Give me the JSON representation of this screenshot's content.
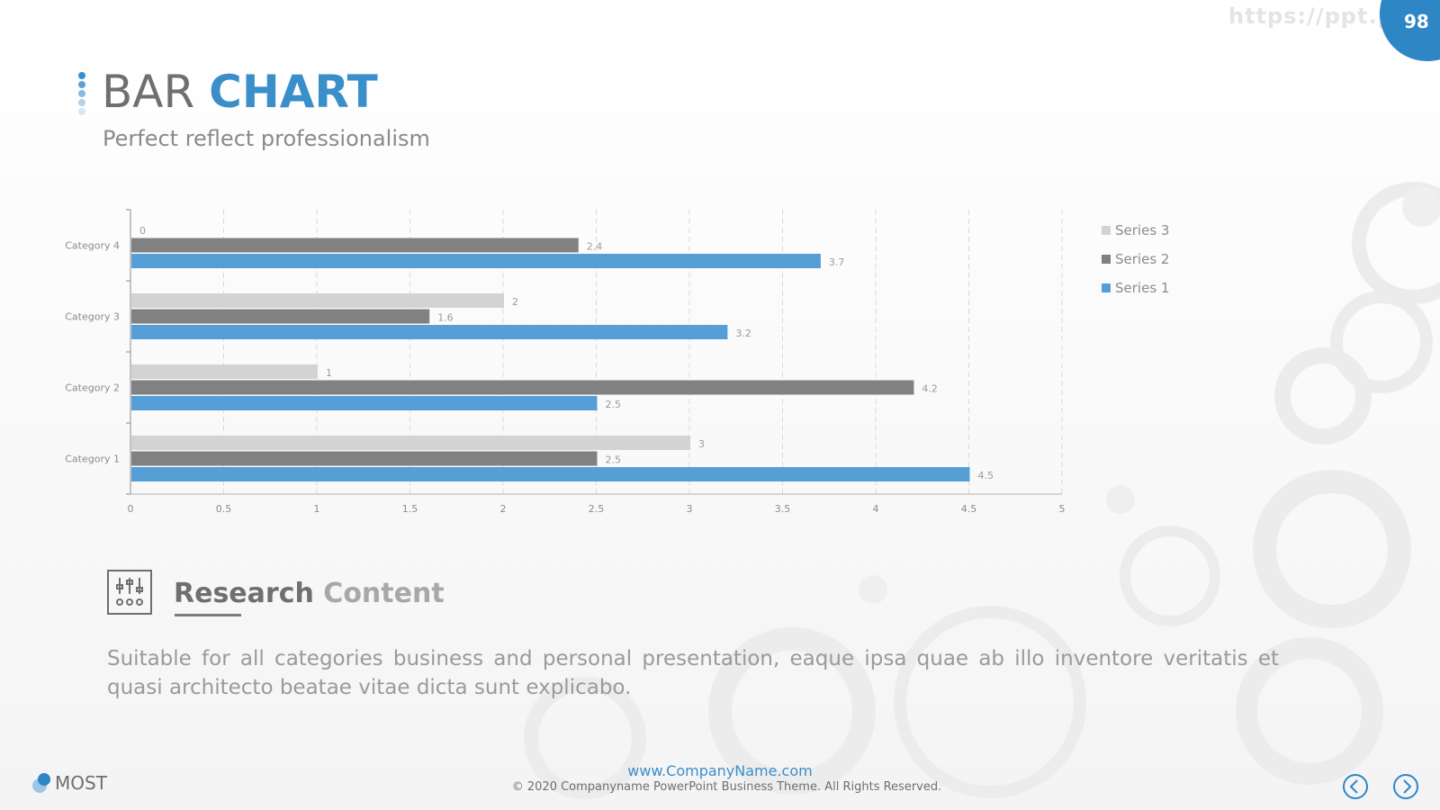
{
  "watermark_url": "https://ppt.pd",
  "page_number": "98",
  "header": {
    "title_light": "BAR",
    "title_bold": "CHART",
    "subtitle": "Perfect reflect professionalism"
  },
  "colors": {
    "accent": "#3a8fca",
    "series1": "#559fd6",
    "series2": "#818181",
    "series3": "#d3d3d3"
  },
  "chart_data": {
    "type": "bar",
    "orientation": "horizontal",
    "categories": [
      "Category 1",
      "Category 2",
      "Category 3",
      "Category 4"
    ],
    "series": [
      {
        "name": "Series 1",
        "color": "#559fd6",
        "values": [
          4.5,
          2.5,
          3.2,
          3.7
        ]
      },
      {
        "name": "Series 2",
        "color": "#818181",
        "values": [
          2.5,
          4.2,
          1.6,
          2.4
        ]
      },
      {
        "name": "Series 3",
        "color": "#d3d3d3",
        "values": [
          3,
          1,
          2,
          0
        ]
      }
    ],
    "xlim": [
      0,
      5
    ],
    "xticks": [
      "0",
      "0.5",
      "1",
      "1.5",
      "2",
      "2.5",
      "3",
      "3.5",
      "4",
      "4.5",
      "5"
    ],
    "grid": "vertical-dashed",
    "data_labels": true,
    "legend_position": "right",
    "legend_order": [
      "Series 3",
      "Series 2",
      "Series 1"
    ]
  },
  "research": {
    "heading_bold": "Research",
    "heading_light": "Content",
    "icon": "sliders-icon",
    "body": "Suitable for all categories business and personal presentation, eaque ipsa quae ab illo inventore veritatis et quasi architecto beatae vitae dicta sunt explicabo."
  },
  "footer": {
    "url": "www.CompanyName.com",
    "copyright": "© 2020 Companyname PowerPoint Business Theme. All Rights Reserved.",
    "logo_text": "MOST",
    "prev_icon": "chevron-left-icon",
    "next_icon": "chevron-right-icon"
  }
}
